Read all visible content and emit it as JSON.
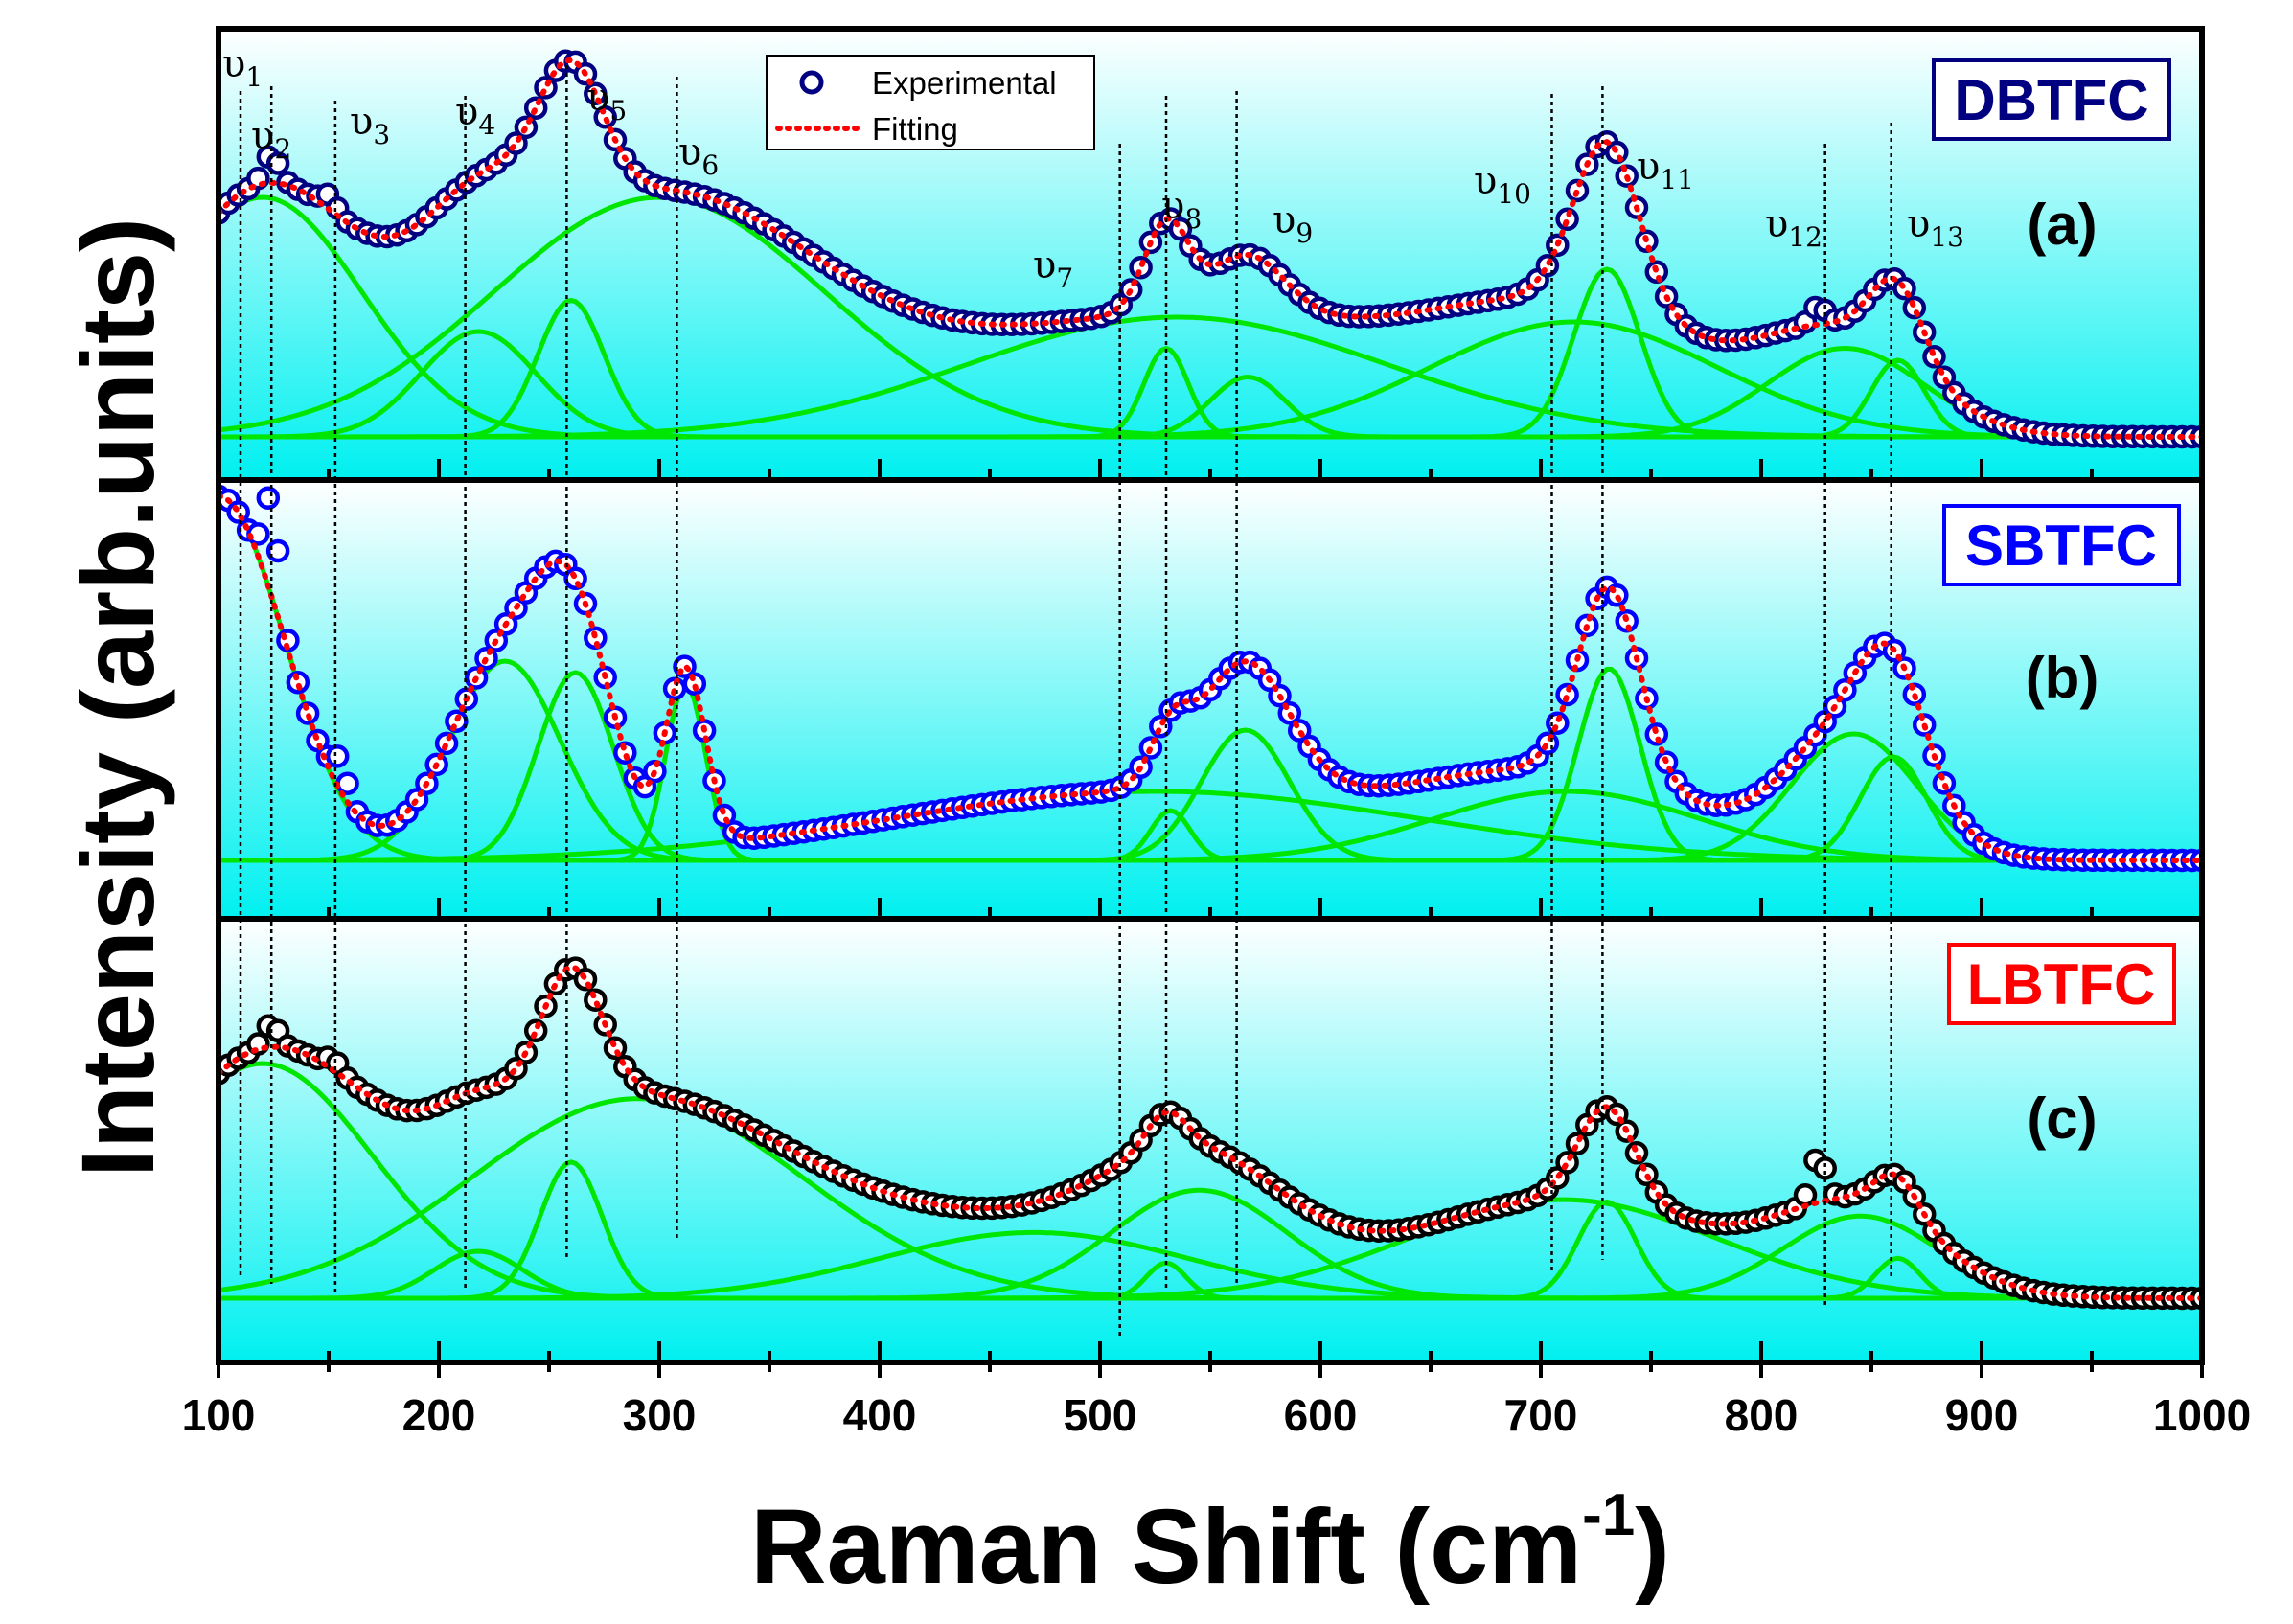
{
  "chart_data": {
    "type": "line",
    "xlabel": "Raman Shift (cm-1)",
    "xlabel_main": "Raman Shift (cm",
    "xlabel_sup": "-1",
    "xlabel_close": ")",
    "ylabel": "Intensity (arb.units)",
    "xlim": [
      100,
      1000
    ],
    "xticks": [
      "100",
      "200",
      "300",
      "400",
      "500",
      "600",
      "700",
      "800",
      "900",
      "1000"
    ],
    "legend": {
      "position": "top-center of panel (a)",
      "entries": [
        {
          "name": "Experimental",
          "marker": "open-circle",
          "color": "#000080"
        },
        {
          "name": "Fitting",
          "marker": "dotted-line",
          "color": "#ff0000"
        }
      ]
    },
    "background_gradient": [
      "#ffffff",
      "#00ffff"
    ],
    "component_color": "#00e600",
    "modes": [
      {
        "label": "υ",
        "sub": "1",
        "x": 110
      },
      {
        "label": "υ",
        "sub": "2",
        "x": 124
      },
      {
        "label": "υ",
        "sub": "3",
        "x": 153
      },
      {
        "label": "υ",
        "sub": "4",
        "x": 212
      },
      {
        "label": "υ",
        "sub": "5",
        "x": 258
      },
      {
        "label": "υ",
        "sub": "6",
        "x": 308
      },
      {
        "label": "υ",
        "sub": "7",
        "x": 509
      },
      {
        "label": "υ",
        "sub": "8",
        "x": 530
      },
      {
        "label": "υ",
        "sub": "9",
        "x": 562
      },
      {
        "label": "υ",
        "sub": "10",
        "x": 705
      },
      {
        "label": "υ",
        "sub": "11",
        "x": 728
      },
      {
        "label": "υ",
        "sub": "12",
        "x": 829
      },
      {
        "label": "υ",
        "sub": "13",
        "x": 859
      }
    ],
    "panels": [
      {
        "letter": "(a)",
        "sample": "DBTFC",
        "sample_color": "#000080",
        "marker_color": "#000080",
        "components": [
          {
            "center": 120,
            "amp": 1.0,
            "width": 45
          },
          {
            "center": 218,
            "amp": 0.44,
            "width": 26
          },
          {
            "center": 260,
            "amp": 0.57,
            "width": 15
          },
          {
            "center": 300,
            "amp": 1.0,
            "width": 75
          },
          {
            "center": 530,
            "amp": 0.37,
            "width": 10
          },
          {
            "center": 535,
            "amp": 0.5,
            "width": 95
          },
          {
            "center": 567,
            "amp": 0.25,
            "width": 17
          },
          {
            "center": 715,
            "amp": 0.48,
            "width": 65
          },
          {
            "center": 730,
            "amp": 0.7,
            "width": 15
          },
          {
            "center": 838,
            "amp": 0.37,
            "width": 35
          },
          {
            "center": 862,
            "amp": 0.32,
            "width": 12
          }
        ],
        "spikes": [
          {
            "x": 124,
            "h": 0.12
          },
          {
            "x": 150,
            "h": 0.06
          },
          {
            "x": 826,
            "h": 0.08
          }
        ]
      },
      {
        "letter": "(b)",
        "sample": "SBTFC",
        "sample_color": "#0000ff",
        "marker_color": "#0000ff",
        "components": [
          {
            "center": 100,
            "amp": 0.95,
            "width": 30
          },
          {
            "center": 230,
            "amp": 0.52,
            "width": 25
          },
          {
            "center": 262,
            "amp": 0.49,
            "width": 17
          },
          {
            "center": 312,
            "amp": 0.46,
            "width": 9
          },
          {
            "center": 525,
            "amp": 0.18,
            "width": 120
          },
          {
            "center": 532,
            "amp": 0.13,
            "width": 9
          },
          {
            "center": 566,
            "amp": 0.34,
            "width": 20
          },
          {
            "center": 712,
            "amp": 0.18,
            "width": 60
          },
          {
            "center": 731,
            "amp": 0.5,
            "width": 14
          },
          {
            "center": 842,
            "amp": 0.33,
            "width": 28
          },
          {
            "center": 860,
            "amp": 0.27,
            "width": 15
          }
        ],
        "spikes": [
          {
            "x": 124,
            "h": 0.25
          },
          {
            "x": 155,
            "h": 0.08
          }
        ]
      },
      {
        "letter": "(c)",
        "sample": "LBTFC",
        "sample_color": "#ff0000",
        "marker_color": "#000000",
        "components": [
          {
            "center": 120,
            "amp": 1.0,
            "width": 50
          },
          {
            "center": 218,
            "amp": 0.2,
            "width": 20
          },
          {
            "center": 260,
            "amp": 0.58,
            "width": 14
          },
          {
            "center": 290,
            "amp": 0.85,
            "width": 75
          },
          {
            "center": 470,
            "amp": 0.28,
            "width": 70
          },
          {
            "center": 530,
            "amp": 0.15,
            "width": 9
          },
          {
            "center": 545,
            "amp": 0.46,
            "width": 40
          },
          {
            "center": 710,
            "amp": 0.42,
            "width": 70
          },
          {
            "center": 730,
            "amp": 0.41,
            "width": 13
          },
          {
            "center": 845,
            "amp": 0.35,
            "width": 35
          },
          {
            "center": 862,
            "amp": 0.17,
            "width": 10
          }
        ],
        "spikes": [
          {
            "x": 124,
            "h": 0.1
          },
          {
            "x": 152,
            "h": 0.05
          },
          {
            "x": 826,
            "h": 0.2
          }
        ]
      }
    ]
  }
}
